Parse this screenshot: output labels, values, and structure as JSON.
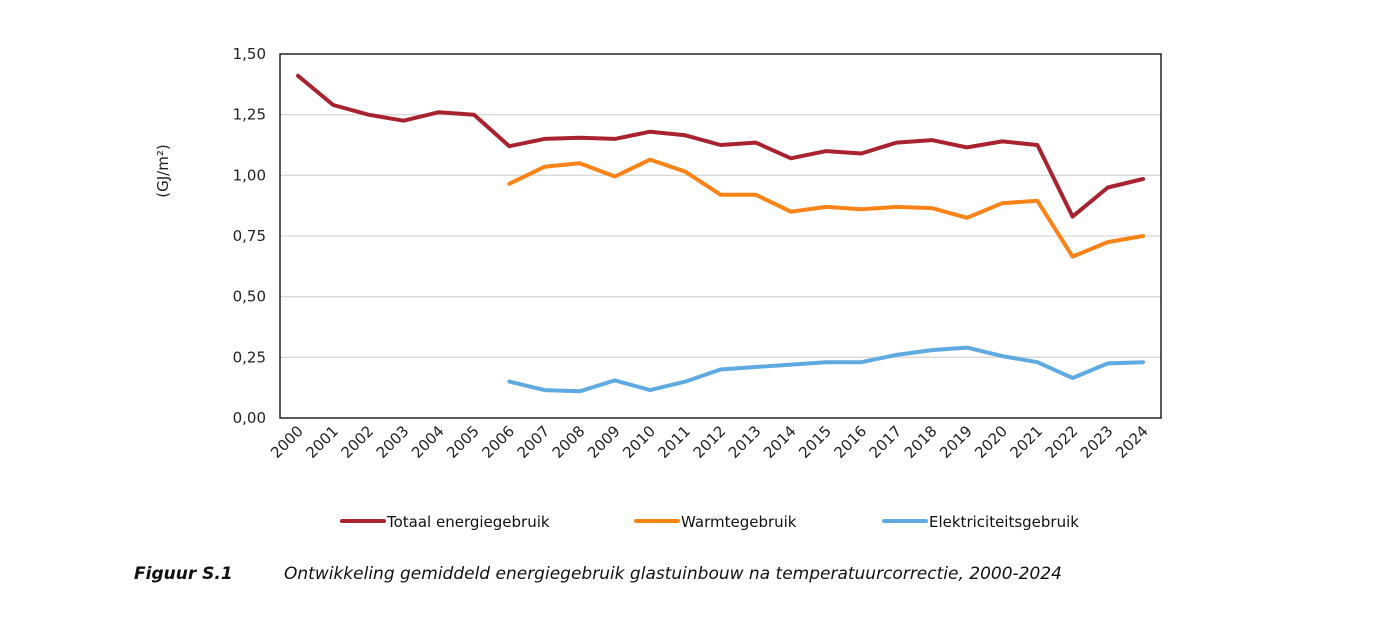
{
  "chart_data": {
    "type": "line",
    "title": "",
    "xlabel": "",
    "ylabel": "(GJ/m²)",
    "ylim": [
      0,
      1.5
    ],
    "yticks": [
      "0,00",
      "0,25",
      "0,50",
      "0,75",
      "1,00",
      "1,25",
      "1,50"
    ],
    "ytick_values": [
      0,
      0.25,
      0.5,
      0.75,
      1.0,
      1.25,
      1.5
    ],
    "grid": "horizontal",
    "legend_position": "bottom",
    "x": [
      "2000",
      "2001",
      "2002",
      "2003",
      "2004",
      "2005",
      "2006",
      "2007",
      "2008",
      "2009",
      "2010",
      "2011",
      "2012",
      "2013",
      "2014",
      "2015",
      "2016",
      "2017",
      "2018",
      "2019",
      "2020",
      "2021",
      "2022",
      "2023",
      "2024"
    ],
    "series": [
      {
        "name": "Totaal energiegebruik",
        "color": "#A8232F",
        "values": [
          1.41,
          1.29,
          1.25,
          1.225,
          1.26,
          1.25,
          1.12,
          1.15,
          1.155,
          1.15,
          1.18,
          1.165,
          1.125,
          1.135,
          1.07,
          1.1,
          1.09,
          1.135,
          1.145,
          1.115,
          1.14,
          1.125,
          0.83,
          0.95,
          0.985
        ]
      },
      {
        "name": "Warmtegebruik",
        "color": "#F98316",
        "values": [
          null,
          null,
          null,
          null,
          null,
          null,
          0.965,
          1.035,
          1.05,
          0.995,
          1.065,
          1.015,
          0.92,
          0.92,
          0.85,
          0.87,
          0.86,
          0.87,
          0.865,
          0.825,
          0.885,
          0.895,
          0.665,
          0.725,
          0.75
        ]
      },
      {
        "name": "Elektriciteitsgebruik",
        "color": "#60AAE2",
        "values": [
          null,
          null,
          null,
          null,
          null,
          null,
          0.15,
          0.115,
          0.11,
          0.155,
          0.115,
          0.15,
          0.2,
          0.21,
          0.22,
          0.23,
          0.23,
          0.26,
          0.28,
          0.29,
          0.255,
          0.23,
          0.165,
          0.225,
          0.23
        ]
      }
    ]
  },
  "caption": {
    "label": "Figuur S.1",
    "text": "Ontwikkeling gemiddeld energiegebruik glastuinbouw na temperatuurcorrectie, 2000-2024"
  }
}
